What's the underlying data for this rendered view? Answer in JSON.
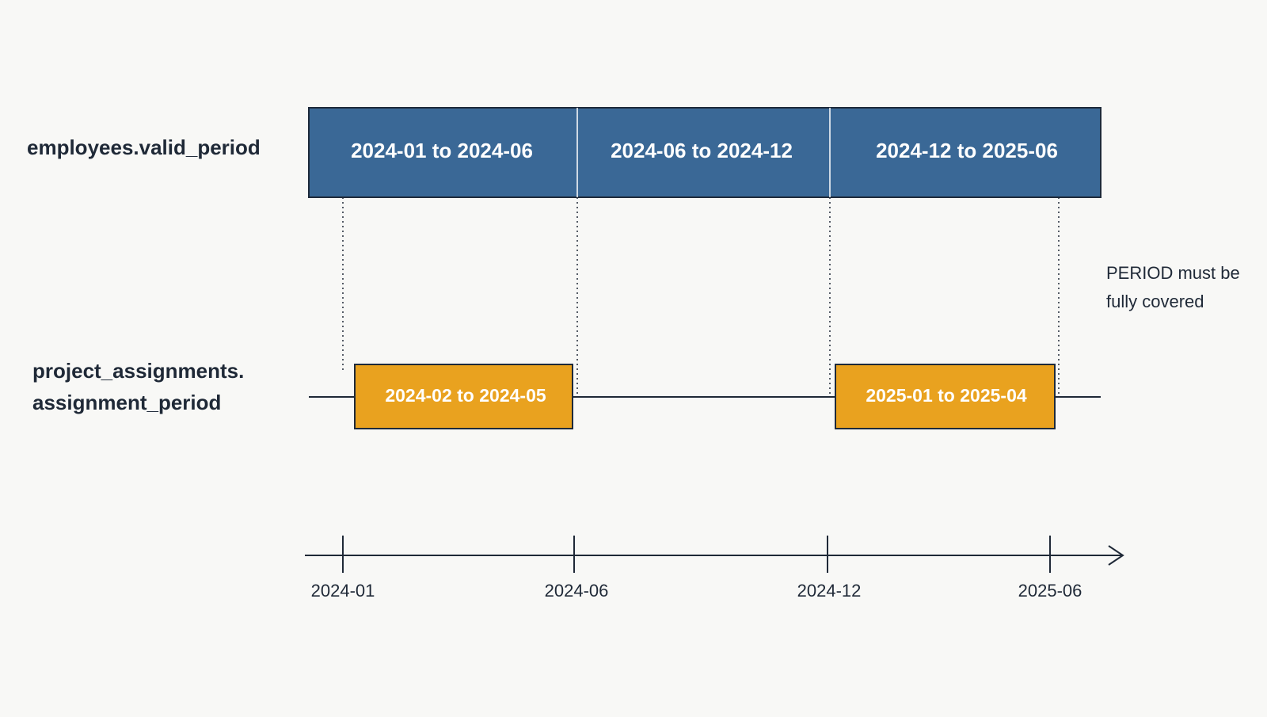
{
  "rows": {
    "employees": {
      "label": "employees.valid_period",
      "segments": [
        "2024-01 to 2024-06",
        "2024-06 to 2024-12",
        "2024-12 to 2025-06"
      ]
    },
    "assignments": {
      "label_lines": [
        "project_assignments.",
        "assignment_period"
      ],
      "segments": [
        "2024-02 to 2024-05",
        "2025-01 to 2025-04"
      ]
    }
  },
  "note_lines": [
    "PERIOD must be",
    "fully covered"
  ],
  "axis": {
    "labels": [
      "2024-01",
      "2024-06",
      "2024-12",
      "2025-06"
    ]
  }
}
